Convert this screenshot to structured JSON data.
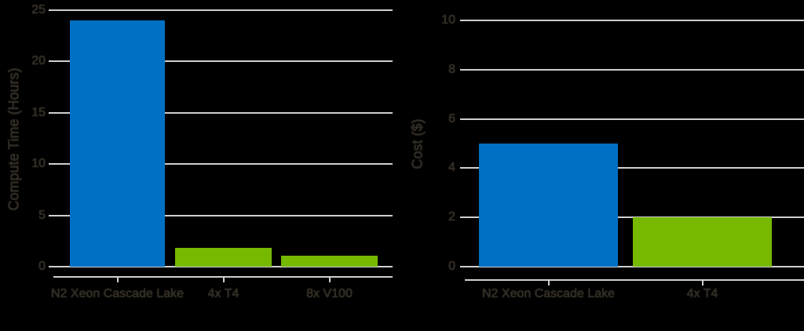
{
  "colors": {
    "cpu": "#0070c4",
    "gpu": "#76b900",
    "grid": "#cfcfcf",
    "background": "#000000"
  },
  "chart_data": [
    {
      "type": "bar",
      "title": "",
      "xlabel": "",
      "ylabel": "Compute Time (Hours)",
      "categories": [
        "N2 Xeon Cascade Lake",
        "4x T4",
        "8x V100"
      ],
      "values": [
        24.0,
        1.8,
        1.1
      ],
      "bar_colors": [
        "#0070c4",
        "#76b900",
        "#76b900"
      ],
      "ylim": [
        0,
        25
      ],
      "yticks": [
        "0",
        "5",
        "10",
        "15",
        "20",
        "25"
      ],
      "grid": true,
      "legend": null
    },
    {
      "type": "bar",
      "title": "",
      "xlabel": "",
      "ylabel": "Cost ($)",
      "categories": [
        "N2 Xeon Cascade Lake",
        "4x T4"
      ],
      "values": [
        5.0,
        2.0
      ],
      "bar_colors": [
        "#0070c4",
        "#76b900"
      ],
      "ylim": [
        0,
        10
      ],
      "yticks": [
        "0",
        "2",
        "4",
        "6",
        "8",
        "10"
      ],
      "grid": true,
      "legend": null
    }
  ]
}
